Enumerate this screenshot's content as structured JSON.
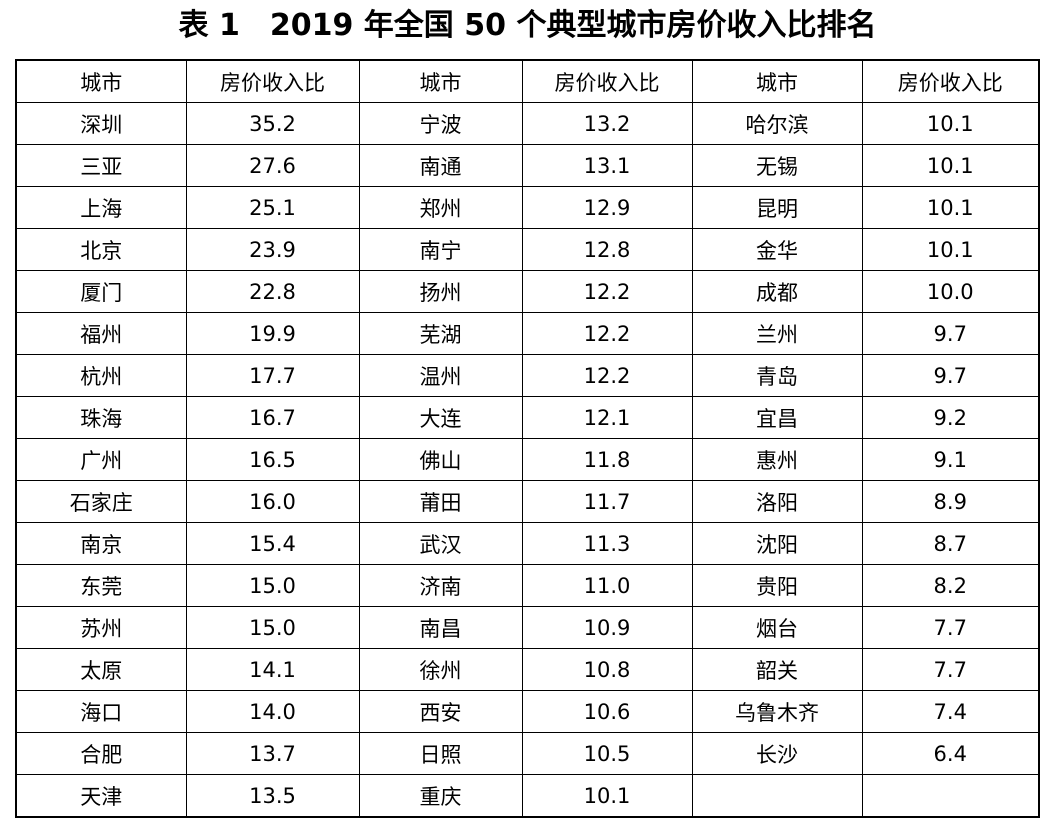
{
  "title": "表 1　2019 年全国 50 个典型城市房价收入比排名",
  "table": {
    "column_headers": [
      "城市",
      "房价收入比",
      "城市",
      "房价收入比",
      "城市",
      "房价收入比"
    ],
    "rows": [
      [
        "深圳",
        "35.2",
        "宁波",
        "13.2",
        "哈尔滨",
        "10.1"
      ],
      [
        "三亚",
        "27.6",
        "南通",
        "13.1",
        "无锡",
        "10.1"
      ],
      [
        "上海",
        "25.1",
        "郑州",
        "12.9",
        "昆明",
        "10.1"
      ],
      [
        "北京",
        "23.9",
        "南宁",
        "12.8",
        "金华",
        "10.1"
      ],
      [
        "厦门",
        "22.8",
        "扬州",
        "12.2",
        "成都",
        "10.0"
      ],
      [
        "福州",
        "19.9",
        "芜湖",
        "12.2",
        "兰州",
        "9.7"
      ],
      [
        "杭州",
        "17.7",
        "温州",
        "12.2",
        "青岛",
        "9.7"
      ],
      [
        "珠海",
        "16.7",
        "大连",
        "12.1",
        "宜昌",
        "9.2"
      ],
      [
        "广州",
        "16.5",
        "佛山",
        "11.8",
        "惠州",
        "9.1"
      ],
      [
        "石家庄",
        "16.0",
        "莆田",
        "11.7",
        "洛阳",
        "8.9"
      ],
      [
        "南京",
        "15.4",
        "武汉",
        "11.3",
        "沈阳",
        "8.7"
      ],
      [
        "东莞",
        "15.0",
        "济南",
        "11.0",
        "贵阳",
        "8.2"
      ],
      [
        "苏州",
        "15.0",
        "南昌",
        "10.9",
        "烟台",
        "7.7"
      ],
      [
        "太原",
        "14.1",
        "徐州",
        "10.8",
        "韶关",
        "7.7"
      ],
      [
        "海口",
        "14.0",
        "西安",
        "10.6",
        "乌鲁木齐",
        "7.4"
      ],
      [
        "合肥",
        "13.7",
        "日照",
        "10.5",
        "长沙",
        "6.4"
      ],
      [
        "天津",
        "13.5",
        "重庆",
        "10.1",
        "",
        ""
      ]
    ]
  },
  "colors": {
    "text": "#000000",
    "border": "#000000",
    "background": "#ffffff"
  }
}
